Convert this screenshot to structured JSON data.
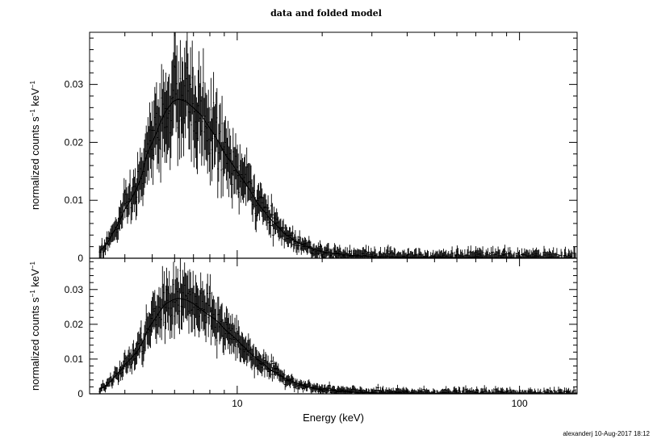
{
  "chart_data": {
    "type": "scatter",
    "title": "data and folded model",
    "footer": "alexanderj 10-Aug-2017 18:12",
    "xlabel": "Energy (keV)",
    "xscale": "log",
    "xlim": [
      3,
      160
    ],
    "x_ticks": [
      10,
      100
    ],
    "x_tick_labels": [
      "10",
      "100"
    ],
    "grid": false,
    "style": "error bars (step data points with vertical error bars)",
    "panels": [
      {
        "ylabel_main": "normalized counts s",
        "ylabel_sup1": "−1",
        "ylabel_unit": " keV",
        "ylabel_sup2": "−1",
        "ylim": [
          0,
          0.039
        ],
        "y_ticks": [
          0,
          0.01,
          0.02,
          0.03
        ],
        "y_tick_labels": [
          "0",
          "0.01",
          "0.02",
          "0.03"
        ],
        "profile_points": [
          [
            3.2,
            0.001
          ],
          [
            3.4,
            0.002
          ],
          [
            3.6,
            0.004
          ],
          [
            3.8,
            0.006
          ],
          [
            4.0,
            0.0085
          ],
          [
            4.2,
            0.01
          ],
          [
            4.4,
            0.012
          ],
          [
            4.6,
            0.0145
          ],
          [
            4.8,
            0.018
          ],
          [
            5.0,
            0.02
          ],
          [
            5.3,
            0.023
          ],
          [
            5.6,
            0.0255
          ],
          [
            5.9,
            0.027
          ],
          [
            6.2,
            0.0275
          ],
          [
            6.6,
            0.027
          ],
          [
            7.0,
            0.026
          ],
          [
            7.5,
            0.0245
          ],
          [
            8.0,
            0.0225
          ],
          [
            8.6,
            0.02
          ],
          [
            9.2,
            0.0175
          ],
          [
            10.0,
            0.015
          ],
          [
            11.0,
            0.012
          ],
          [
            12.0,
            0.009
          ],
          [
            13.0,
            0.007
          ],
          [
            14.5,
            0.0045
          ],
          [
            16.0,
            0.003
          ],
          [
            18.0,
            0.0018
          ],
          [
            20.0,
            0.0011
          ],
          [
            25.0,
            0.0005
          ],
          [
            30.0,
            0.0003
          ],
          [
            40.0,
            0.00015
          ],
          [
            60.0,
            0.0001
          ],
          [
            100.0,
            5e-05
          ],
          [
            160.0,
            3e-05
          ]
        ]
      },
      {
        "ylabel_main": "normalized counts s",
        "ylabel_sup1": "−1",
        "ylabel_unit": " keV",
        "ylabel_sup2": "−1",
        "ylim": [
          0,
          0.039
        ],
        "y_ticks": [
          0,
          0.01,
          0.02,
          0.03
        ],
        "y_tick_labels": [
          "0",
          "0.01",
          "0.02",
          "0.03"
        ],
        "profile_points": [
          [
            3.2,
            0.001
          ],
          [
            3.4,
            0.002
          ],
          [
            3.6,
            0.004
          ],
          [
            3.8,
            0.006
          ],
          [
            4.0,
            0.0085
          ],
          [
            4.2,
            0.01
          ],
          [
            4.4,
            0.012
          ],
          [
            4.6,
            0.0145
          ],
          [
            4.8,
            0.018
          ],
          [
            5.0,
            0.0205
          ],
          [
            5.3,
            0.0235
          ],
          [
            5.6,
            0.026
          ],
          [
            5.9,
            0.027
          ],
          [
            6.2,
            0.0275
          ],
          [
            6.6,
            0.027
          ],
          [
            7.0,
            0.026
          ],
          [
            7.5,
            0.024
          ],
          [
            8.0,
            0.0225
          ],
          [
            8.6,
            0.0205
          ],
          [
            9.2,
            0.018
          ],
          [
            10.0,
            0.0155
          ],
          [
            11.0,
            0.012
          ],
          [
            12.0,
            0.0095
          ],
          [
            13.0,
            0.0072
          ],
          [
            14.5,
            0.0048
          ],
          [
            16.0,
            0.0032
          ],
          [
            18.0,
            0.0019
          ],
          [
            20.0,
            0.0012
          ],
          [
            25.0,
            0.0005
          ],
          [
            30.0,
            0.0003
          ],
          [
            40.0,
            0.00015
          ],
          [
            60.0,
            0.0001
          ],
          [
            100.0,
            5e-05
          ],
          [
            160.0,
            3e-05
          ]
        ]
      }
    ]
  }
}
